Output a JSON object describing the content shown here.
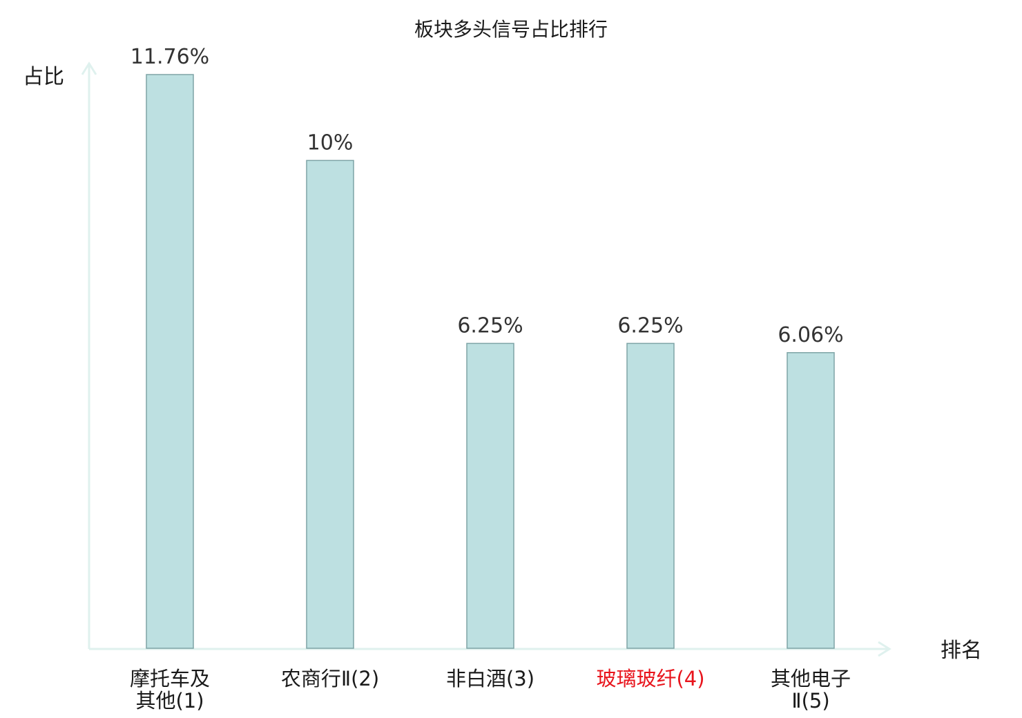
{
  "chart_data": {
    "type": "bar",
    "title": "板块多头信号占比排行",
    "ylabel": "占比",
    "xlabel": "排名",
    "categories": [
      [
        "摩托车及",
        "其他(1)"
      ],
      [
        "农商行Ⅱ(2)"
      ],
      [
        "非白酒(3)"
      ],
      [
        "玻璃玻纤(4)"
      ],
      [
        "其他电子",
        "Ⅱ(5)"
      ]
    ],
    "values": [
      11.76,
      10,
      6.25,
      6.25,
      6.06
    ],
    "value_labels": [
      "11.76%",
      "10%",
      "6.25%",
      "6.25%",
      "6.06%"
    ],
    "highlight_index": 3,
    "ylim": [
      0,
      11.76
    ],
    "grid": false,
    "legend": "none",
    "colors": {
      "bar_fill": "#bde0e1",
      "bar_stroke": "#7ea4a6",
      "axis": "#dff1ee",
      "highlight_text": "#e8141c"
    }
  }
}
